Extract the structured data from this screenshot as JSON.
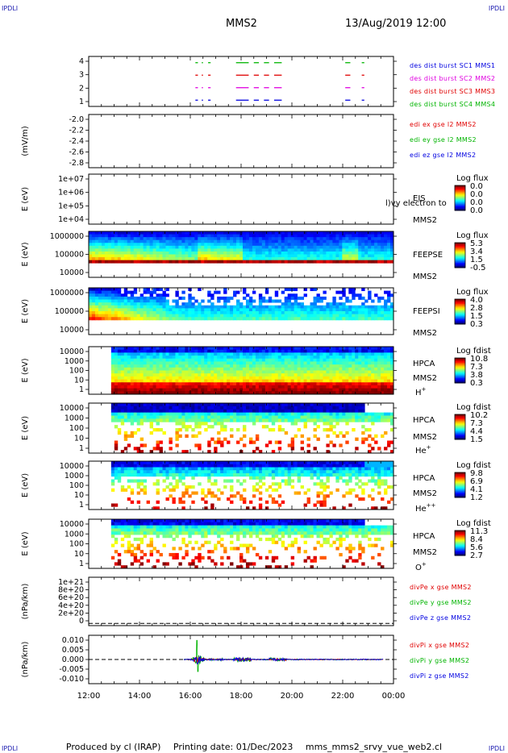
{
  "header": {
    "corner_labels": [
      "IPDLI",
      "IPDLI",
      "IPDLI",
      "IPDLI"
    ],
    "title": "MMS2",
    "datetime": "13/Aug/2019 12:00"
  },
  "footer": {
    "produced": "Produced by cl (IRAP)",
    "printing": "Printing date: 01/Dec/2023",
    "file": "mms_mms2_srvy_vue_web2.cl"
  },
  "colors": {
    "red": "#e00000",
    "green": "#00b400",
    "blue": "#0000e0",
    "magenta": "#e000e0"
  },
  "chart_data": [
    {
      "type": "line",
      "id": "burst",
      "ylim": [
        0.5,
        4.5
      ],
      "y_ticks": [
        "4",
        "3",
        "2",
        "1"
      ],
      "legend": [
        {
          "text": "des dist burst SC1 MMS1",
          "color": "#0000e0"
        },
        {
          "text": "des dist burst SC2 MMS2",
          "color": "#e000e0"
        },
        {
          "text": "des dist burst SC3 MMS3",
          "color": "#e00000"
        },
        {
          "text": "des dist burst SC4 MMS4",
          "color": "#00b400"
        }
      ],
      "series": [
        {
          "level": 4,
          "color": "#00b400",
          "segments": [
            [
              16.2,
              16.3
            ],
            [
              16.45,
              16.5
            ],
            [
              16.7,
              16.8
            ],
            [
              17.8,
              18.3
            ],
            [
              18.5,
              18.7
            ],
            [
              18.9,
              19.1
            ],
            [
              19.3,
              19.6
            ],
            [
              22.1,
              22.3
            ],
            [
              22.75,
              22.85
            ]
          ]
        },
        {
          "level": 3,
          "color": "#e00000",
          "segments": [
            [
              16.2,
              16.3
            ],
            [
              16.45,
              16.5
            ],
            [
              16.7,
              16.8
            ],
            [
              17.8,
              18.3
            ],
            [
              18.5,
              18.7
            ],
            [
              18.9,
              19.1
            ],
            [
              19.3,
              19.6
            ],
            [
              22.1,
              22.3
            ],
            [
              22.75,
              22.85
            ]
          ]
        },
        {
          "level": 2,
          "color": "#e000e0",
          "segments": [
            [
              16.2,
              16.3
            ],
            [
              16.45,
              16.5
            ],
            [
              16.7,
              16.8
            ],
            [
              17.8,
              18.3
            ],
            [
              18.5,
              18.7
            ],
            [
              18.9,
              19.1
            ],
            [
              19.3,
              19.6
            ],
            [
              22.1,
              22.3
            ],
            [
              22.75,
              22.85
            ]
          ]
        },
        {
          "level": 1,
          "color": "#0000e0",
          "segments": [
            [
              16.2,
              16.3
            ],
            [
              16.45,
              16.5
            ],
            [
              16.7,
              16.8
            ],
            [
              17.8,
              18.3
            ],
            [
              18.5,
              18.7
            ],
            [
              18.9,
              19.1
            ],
            [
              19.3,
              19.6
            ],
            [
              22.1,
              22.3
            ],
            [
              22.75,
              22.85
            ]
          ]
        }
      ]
    },
    {
      "type": "line",
      "id": "edi",
      "ylabel": "(mV/m)",
      "ylim": [
        -2.9,
        -1.9
      ],
      "y_ticks": [
        "-2.0",
        "-2.2",
        "-2.4",
        "-2.6",
        "-2.8"
      ],
      "legend": [
        {
          "text": "edi ex gse l2 MMS2",
          "color": "#e00000"
        },
        {
          "text": "edi ey gse l2 MMS2",
          "color": "#00b400"
        },
        {
          "text": "edi ez gse l2 MMS2",
          "color": "#0000e0"
        }
      ]
    },
    {
      "type": "heatmap",
      "id": "eis",
      "ylabel": "E (eV)",
      "y_ticks": [
        "1e+07",
        "1e+06",
        "1e+05",
        "1e+04"
      ],
      "labels": [
        "EIS",
        "MMS2"
      ],
      "overlay_text": "l)vy electron to",
      "colorbar": {
        "title": "Log flux",
        "ticks": [
          "0.0",
          "0.0",
          "0.0",
          "0.0"
        ]
      }
    },
    {
      "type": "heatmap",
      "id": "feeps_e",
      "ylabel": "E (eV)",
      "y_ticks": [
        "1000000",
        "100000",
        "10000"
      ],
      "labels": [
        "FEEPSE",
        "MMS2"
      ],
      "colorbar": {
        "title": "Log flux",
        "ticks": [
          "5.3",
          "3.4",
          "1.5",
          "-0.5"
        ]
      }
    },
    {
      "type": "heatmap",
      "id": "feeps_i",
      "ylabel": "E (eV)",
      "y_ticks": [
        "1000000",
        "100000",
        "10000"
      ],
      "labels": [
        "FEEPSI",
        "MMS2"
      ],
      "colorbar": {
        "title": "Log flux",
        "ticks": [
          "4.0",
          "2.8",
          "1.5",
          "0.3"
        ]
      }
    },
    {
      "type": "heatmap",
      "id": "hpca_h",
      "ylabel": "E (eV)",
      "y_ticks": [
        "10000",
        "1000",
        "100",
        "10",
        "1"
      ],
      "labels": [
        "HPCA",
        "MMS2",
        "H+"
      ],
      "colorbar": {
        "title": "Log fdist",
        "ticks": [
          "10.8",
          "7.3",
          "3.8",
          "0.3"
        ]
      }
    },
    {
      "type": "heatmap",
      "id": "hpca_he",
      "ylabel": "E (eV)",
      "y_ticks": [
        "10000",
        "1000",
        "100",
        "10",
        "1"
      ],
      "labels": [
        "HPCA",
        "MMS2",
        "He+"
      ],
      "colorbar": {
        "title": "Log fdist",
        "ticks": [
          "10.2",
          "7.3",
          "4.4",
          "1.5"
        ]
      }
    },
    {
      "type": "heatmap",
      "id": "hpca_hepp",
      "ylabel": "E (eV)",
      "y_ticks": [
        "10000",
        "1000",
        "100",
        "10",
        "1"
      ],
      "labels": [
        "HPCA",
        "MMS2",
        "He++"
      ],
      "colorbar": {
        "title": "Log fdist",
        "ticks": [
          "9.8",
          "6.9",
          "4.1",
          "1.2"
        ]
      }
    },
    {
      "type": "heatmap",
      "id": "hpca_o",
      "ylabel": "E (eV)",
      "y_ticks": [
        "10000",
        "1000",
        "100",
        "10",
        "1"
      ],
      "labels": [
        "HPCA",
        "MMS2",
        "O+"
      ],
      "colorbar": {
        "title": "Log fdist",
        "ticks": [
          "11.3",
          "8.4",
          "5.6",
          "2.7"
        ]
      }
    },
    {
      "type": "line",
      "id": "divpe",
      "ylabel": "(nPa/km)",
      "ylim": [
        -5e+19,
        1.05e+21
      ],
      "y_ticks": [
        "1e+21",
        "8e+20",
        "6e+20",
        "4e+20",
        "2e+20",
        "0"
      ],
      "legend": [
        {
          "text": "divPe x gse MMS2",
          "color": "#e00000"
        },
        {
          "text": "divPe y gse MMS2",
          "color": "#00b400"
        },
        {
          "text": "divPe z gse MMS2",
          "color": "#0000e0"
        }
      ]
    },
    {
      "type": "line",
      "id": "divpi",
      "ylabel": "(nPa/km)",
      "ylim": [
        -0.012,
        0.012
      ],
      "y_ticks": [
        "0.010",
        "0.005",
        "0.000",
        "-0.005",
        "-0.010"
      ],
      "legend": [
        {
          "text": "divPi x gse MMS2",
          "color": "#e00000"
        },
        {
          "text": "divPi y gse MMS2",
          "color": "#00b400"
        },
        {
          "text": "divPi z gse MMS2",
          "color": "#0000e0"
        }
      ]
    }
  ],
  "x_axis": {
    "range_hours": [
      12,
      24
    ],
    "tick_labels": [
      "12:00",
      "14:00",
      "16:00",
      "18:00",
      "20:00",
      "22:00",
      "00:00"
    ]
  }
}
